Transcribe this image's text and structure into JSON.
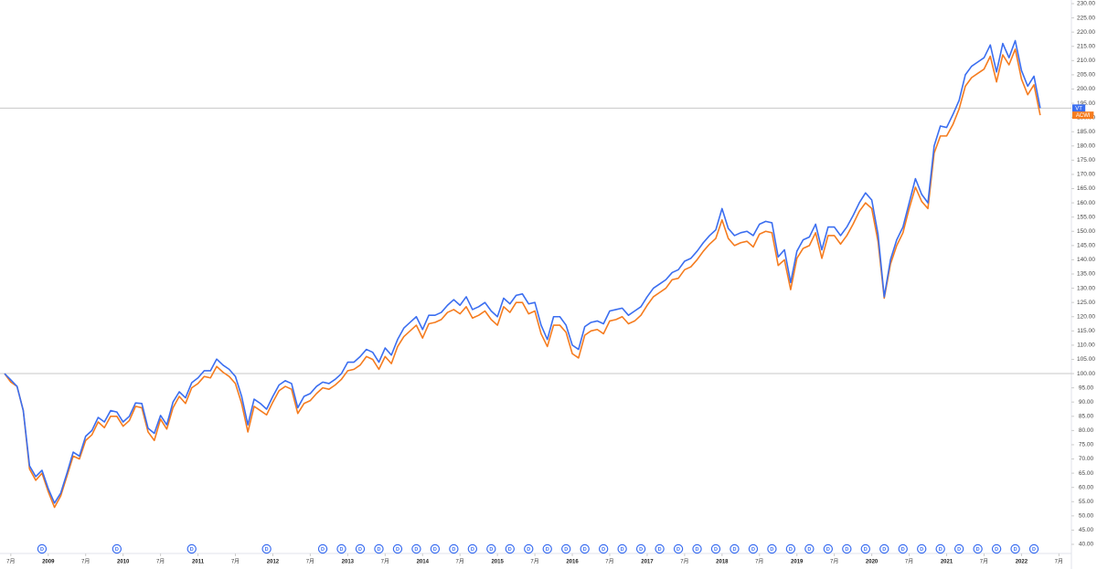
{
  "chart_data": {
    "type": "line",
    "x": [
      "2008-06",
      "2008-07",
      "2008-08",
      "2008-09",
      "2008-10",
      "2008-11",
      "2008-12",
      "2009-01",
      "2009-02",
      "2009-03",
      "2009-04",
      "2009-05",
      "2009-06",
      "2009-07",
      "2009-08",
      "2009-09",
      "2009-10",
      "2009-11",
      "2009-12",
      "2010-01",
      "2010-02",
      "2010-03",
      "2010-04",
      "2010-05",
      "2010-06",
      "2010-07",
      "2010-08",
      "2010-09",
      "2010-10",
      "2010-11",
      "2010-12",
      "2011-01",
      "2011-02",
      "2011-03",
      "2011-04",
      "2011-05",
      "2011-06",
      "2011-07",
      "2011-08",
      "2011-09",
      "2011-10",
      "2011-11",
      "2011-12",
      "2012-01",
      "2012-02",
      "2012-03",
      "2012-04",
      "2012-05",
      "2012-06",
      "2012-07",
      "2012-08",
      "2012-09",
      "2012-10",
      "2012-11",
      "2012-12",
      "2013-01",
      "2013-02",
      "2013-03",
      "2013-04",
      "2013-05",
      "2013-06",
      "2013-07",
      "2013-08",
      "2013-09",
      "2013-10",
      "2013-11",
      "2013-12",
      "2014-01",
      "2014-02",
      "2014-03",
      "2014-04",
      "2014-05",
      "2014-06",
      "2014-07",
      "2014-08",
      "2014-09",
      "2014-10",
      "2014-11",
      "2014-12",
      "2015-01",
      "2015-02",
      "2015-03",
      "2015-04",
      "2015-05",
      "2015-06",
      "2015-07",
      "2015-08",
      "2015-09",
      "2015-10",
      "2015-11",
      "2015-12",
      "2016-01",
      "2016-02",
      "2016-03",
      "2016-04",
      "2016-05",
      "2016-06",
      "2016-07",
      "2016-08",
      "2016-09",
      "2016-10",
      "2016-11",
      "2016-12",
      "2017-01",
      "2017-02",
      "2017-03",
      "2017-04",
      "2017-05",
      "2017-06",
      "2017-07",
      "2017-08",
      "2017-09",
      "2017-10",
      "2017-11",
      "2017-12",
      "2018-01",
      "2018-02",
      "2018-03",
      "2018-04",
      "2018-05",
      "2018-06",
      "2018-07",
      "2018-08",
      "2018-09",
      "2018-10",
      "2018-11",
      "2018-12",
      "2019-01",
      "2019-02",
      "2019-03",
      "2019-04",
      "2019-05",
      "2019-06",
      "2019-07",
      "2019-08",
      "2019-09",
      "2019-10",
      "2019-11",
      "2019-12",
      "2020-01",
      "2020-02",
      "2020-03",
      "2020-04",
      "2020-05",
      "2020-06",
      "2020-07",
      "2020-08",
      "2020-09",
      "2020-10",
      "2020-11",
      "2020-12",
      "2021-01",
      "2021-02",
      "2021-03",
      "2021-04",
      "2021-05",
      "2021-06",
      "2021-07",
      "2021-08",
      "2021-09",
      "2021-10",
      "2021-11",
      "2021-12",
      "2022-01",
      "2022-02",
      "2022-03",
      "2022-04"
    ],
    "series": [
      {
        "name": "VT",
        "color": "#3b6ef0",
        "values": [
          100,
          97.8,
          95.5,
          87,
          67.6,
          63.8,
          66,
          59.6,
          54.5,
          58,
          65,
          72.4,
          71,
          78,
          80,
          84.6,
          83,
          87,
          86.5,
          83,
          85,
          89.7,
          89.5,
          80.8,
          79,
          85.3,
          82,
          90,
          93.6,
          91.5,
          96.8,
          98.5,
          101,
          101,
          105.1,
          103,
          101.5,
          99,
          92,
          82,
          91,
          89.5,
          87.5,
          92,
          96,
          97.5,
          96.5,
          88,
          92,
          93,
          95.5,
          97,
          96.5,
          98,
          100,
          104,
          104,
          106,
          108.5,
          107.5,
          104,
          109,
          106.5,
          112,
          116,
          118,
          120,
          115.5,
          120.5,
          120.5,
          121.5,
          124,
          126,
          124,
          127,
          122.5,
          123.5,
          125,
          122,
          120,
          126.5,
          124.5,
          127.5,
          128,
          124.5,
          125,
          117,
          112,
          120,
          120,
          117,
          110,
          108.5,
          116.5,
          118,
          118.5,
          117.5,
          122,
          122.5,
          123,
          120.5,
          122,
          123.5,
          127,
          130,
          131.5,
          133,
          135.5,
          136.5,
          139.5,
          140.5,
          143,
          146,
          148.5,
          150.5,
          158,
          151,
          148.5,
          149.5,
          150,
          148.5,
          152.5,
          153.5,
          153,
          141,
          143.5,
          132,
          143,
          147,
          148,
          152.5,
          143.5,
          151.5,
          151.5,
          148.5,
          151.5,
          155.5,
          160,
          163.5,
          161,
          149,
          127,
          140,
          147,
          151.5,
          160,
          168.5,
          163,
          160,
          180,
          187,
          186.5,
          191,
          196,
          205,
          208,
          209.5,
          211,
          215.5,
          206,
          216,
          211,
          217,
          206.5,
          201,
          204.5,
          193.3
        ]
      },
      {
        "name": "ACWI",
        "color": "#f57c1f",
        "values": [
          100,
          97,
          95.5,
          87,
          66.5,
          62.5,
          65,
          58.5,
          53,
          57,
          64,
          71,
          70,
          76.5,
          78.5,
          83,
          81,
          85,
          85,
          81.5,
          83.5,
          88.5,
          88,
          79.5,
          76.5,
          84,
          80.5,
          88,
          92,
          89.5,
          95,
          96.5,
          99,
          98.5,
          102.5,
          100.5,
          99,
          96.5,
          89.5,
          79.5,
          88.5,
          87,
          85.5,
          90,
          94,
          95.5,
          94.5,
          86,
          89.5,
          90.5,
          93,
          95,
          94.5,
          96,
          98,
          101,
          101.5,
          103,
          106,
          105,
          101.5,
          106,
          103.5,
          109.5,
          113,
          115,
          117,
          112.5,
          117.5,
          118,
          119,
          121.5,
          122.5,
          121,
          123.5,
          119.5,
          120.5,
          122,
          119,
          117,
          123.5,
          121.5,
          125,
          125,
          121,
          122,
          114,
          109.5,
          117,
          117,
          114.5,
          107,
          105.5,
          113.5,
          115,
          115.5,
          114,
          118.5,
          119,
          120,
          117.5,
          118.5,
          120.5,
          124,
          127,
          128.5,
          130,
          133,
          133.5,
          136.5,
          137.5,
          140,
          143,
          145.5,
          147.5,
          154,
          147.5,
          145,
          146,
          146.5,
          144.5,
          149,
          150,
          149.5,
          138,
          140,
          129.5,
          140.5,
          144,
          145,
          149.5,
          140.5,
          148.5,
          148.5,
          145.5,
          148.5,
          152.5,
          157,
          160,
          158,
          146.5,
          126.5,
          138.5,
          145,
          149.5,
          158,
          165.5,
          160.5,
          158,
          177.5,
          183.5,
          183.5,
          187.5,
          193,
          201,
          204,
          205.5,
          207,
          211.5,
          202.5,
          212,
          208.5,
          214,
          203.5,
          198,
          201.5,
          190.8
        ]
      }
    ],
    "xlim": [
      "2008-06",
      "2022-09"
    ],
    "xticks": [
      {
        "value": "2008-07",
        "label": "7月"
      },
      {
        "value": "2009-01",
        "label": "2009"
      },
      {
        "value": "2009-07",
        "label": "7月"
      },
      {
        "value": "2010-01",
        "label": "2010"
      },
      {
        "value": "2010-07",
        "label": "7月"
      },
      {
        "value": "2011-01",
        "label": "2011"
      },
      {
        "value": "2011-07",
        "label": "7月"
      },
      {
        "value": "2012-01",
        "label": "2012"
      },
      {
        "value": "2012-07",
        "label": "7月"
      },
      {
        "value": "2013-01",
        "label": "2013"
      },
      {
        "value": "2013-07",
        "label": "7月"
      },
      {
        "value": "2014-01",
        "label": "2014"
      },
      {
        "value": "2014-07",
        "label": "7月"
      },
      {
        "value": "2015-01",
        "label": "2015"
      },
      {
        "value": "2015-07",
        "label": "7月"
      },
      {
        "value": "2016-01",
        "label": "2016"
      },
      {
        "value": "2016-07",
        "label": "7月"
      },
      {
        "value": "2017-01",
        "label": "2017"
      },
      {
        "value": "2017-07",
        "label": "7月"
      },
      {
        "value": "2018-01",
        "label": "2018"
      },
      {
        "value": "2018-07",
        "label": "7月"
      },
      {
        "value": "2019-01",
        "label": "2019"
      },
      {
        "value": "2019-07",
        "label": "7月"
      },
      {
        "value": "2020-01",
        "label": "2020"
      },
      {
        "value": "2020-07",
        "label": "7月"
      },
      {
        "value": "2021-01",
        "label": "2021"
      },
      {
        "value": "2021-07",
        "label": "7月"
      },
      {
        "value": "2022-01",
        "label": "2022"
      },
      {
        "value": "2022-07",
        "label": "7月"
      }
    ],
    "ylim": [
      40,
      230
    ],
    "yticks": [
      {
        "value": 40,
        "label": "40.00"
      },
      {
        "value": 45,
        "label": "45.00"
      },
      {
        "value": 50,
        "label": "50.00"
      },
      {
        "value": 55,
        "label": "55.00"
      },
      {
        "value": 60,
        "label": "60.00"
      },
      {
        "value": 65,
        "label": "65.00"
      },
      {
        "value": 70,
        "label": "70.00"
      },
      {
        "value": 75,
        "label": "75.00"
      },
      {
        "value": 80,
        "label": "80.00"
      },
      {
        "value": 85,
        "label": "85.00"
      },
      {
        "value": 90,
        "label": "90.00"
      },
      {
        "value": 95,
        "label": "95.00"
      },
      {
        "value": 100,
        "label": "100.00"
      },
      {
        "value": 105,
        "label": "105.00"
      },
      {
        "value": 110,
        "label": "110.00"
      },
      {
        "value": 115,
        "label": "115.00"
      },
      {
        "value": 120,
        "label": "120.00"
      },
      {
        "value": 125,
        "label": "125.00"
      },
      {
        "value": 130,
        "label": "130.00"
      },
      {
        "value": 135,
        "label": "135.00"
      },
      {
        "value": 140,
        "label": "140.00"
      },
      {
        "value": 145,
        "label": "145.00"
      },
      {
        "value": 150,
        "label": "150.00"
      },
      {
        "value": 155,
        "label": "155.00"
      },
      {
        "value": 160,
        "label": "160.00"
      },
      {
        "value": 165,
        "label": "165.00"
      },
      {
        "value": 170,
        "label": "170.00"
      },
      {
        "value": 175,
        "label": "175.00"
      },
      {
        "value": 180,
        "label": "180.00"
      },
      {
        "value": 185,
        "label": "185.00"
      },
      {
        "value": 190,
        "label": "190.00"
      },
      {
        "value": 195,
        "label": "195.00"
      },
      {
        "value": 200,
        "label": "200.00"
      },
      {
        "value": 205,
        "label": "205.00"
      },
      {
        "value": 210,
        "label": "210.00"
      },
      {
        "value": 215,
        "label": "215.00"
      },
      {
        "value": 220,
        "label": "220.00"
      },
      {
        "value": 225,
        "label": "225.00"
      },
      {
        "value": 230,
        "label": "230.00"
      }
    ],
    "baseline": 100,
    "markers": {
      "label": "D",
      "x": [
        "2008-12",
        "2009-12",
        "2010-12",
        "2011-12",
        "2012-09",
        "2012-12",
        "2013-03",
        "2013-06",
        "2013-09",
        "2013-12",
        "2014-03",
        "2014-06",
        "2014-09",
        "2014-12",
        "2015-03",
        "2015-06",
        "2015-09",
        "2015-12",
        "2016-03",
        "2016-06",
        "2016-09",
        "2016-12",
        "2017-03",
        "2017-06",
        "2017-09",
        "2017-12",
        "2018-03",
        "2018-06",
        "2018-09",
        "2018-12",
        "2019-03",
        "2019-06",
        "2019-09",
        "2019-12",
        "2020-03",
        "2020-06",
        "2020-09",
        "2020-12",
        "2021-03",
        "2021-06",
        "2021-09",
        "2021-12",
        "2022-03"
      ]
    }
  }
}
